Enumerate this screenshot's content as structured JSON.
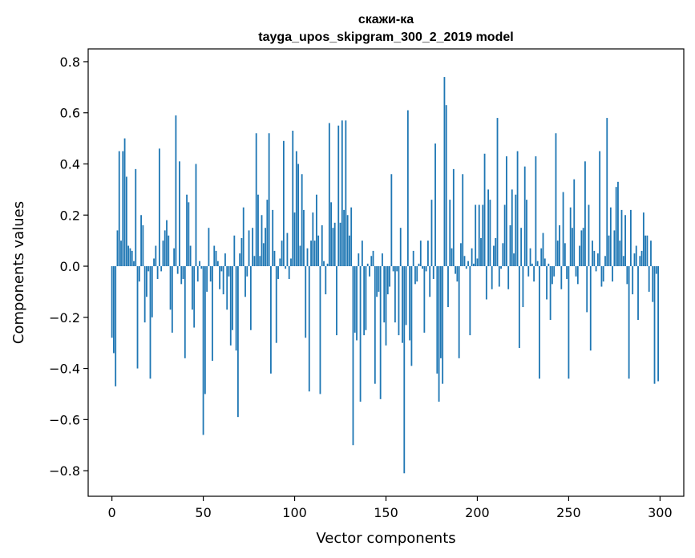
{
  "chart_data": {
    "type": "bar",
    "title_line1": "скажи-ка",
    "title_line2": "tayga_upos_skipgram_300_2_2019 model",
    "xlabel": "Vector components",
    "ylabel": "Components values",
    "xlim": [
      -13,
      313
    ],
    "ylim": [
      -0.9,
      0.85
    ],
    "xticks": [
      {
        "value": 0,
        "label": "0"
      },
      {
        "value": 50,
        "label": "50"
      },
      {
        "value": 100,
        "label": "100"
      },
      {
        "value": 150,
        "label": "150"
      },
      {
        "value": 200,
        "label": "200"
      },
      {
        "value": 250,
        "label": "250"
      },
      {
        "value": 300,
        "label": "300"
      }
    ],
    "yticks": [
      {
        "value": -0.8,
        "label": "−0.8"
      },
      {
        "value": -0.6,
        "label": "−0.6"
      },
      {
        "value": -0.4,
        "label": "−0.4"
      },
      {
        "value": -0.2,
        "label": "−0.2"
      },
      {
        "value": 0.0,
        "label": "0.0"
      },
      {
        "value": 0.2,
        "label": "0.2"
      },
      {
        "value": 0.4,
        "label": "0.4"
      },
      {
        "value": 0.6,
        "label": "0.6"
      },
      {
        "value": 0.8,
        "label": "0.8"
      }
    ],
    "bar_color": "#1f77b4",
    "grid": false,
    "legend": false,
    "values": [
      -0.28,
      -0.34,
      -0.47,
      0.14,
      0.45,
      0.1,
      0.45,
      0.5,
      0.35,
      0.08,
      0.07,
      0.06,
      0.02,
      0.38,
      -0.4,
      -0.06,
      0.2,
      0.16,
      -0.22,
      -0.12,
      -0.02,
      -0.44,
      -0.2,
      0.03,
      0.08,
      -0.05,
      0.46,
      -0.02,
      0.1,
      0.14,
      0.18,
      0.12,
      -0.17,
      -0.26,
      0.07,
      0.59,
      -0.03,
      0.41,
      -0.07,
      -0.05,
      -0.36,
      0.28,
      0.25,
      0.08,
      -0.17,
      -0.24,
      0.4,
      -0.06,
      0.02,
      -0.01,
      -0.66,
      -0.5,
      -0.1,
      0.15,
      -0.06,
      -0.37,
      0.08,
      0.06,
      0.02,
      -0.09,
      -0.02,
      -0.11,
      0.05,
      -0.17,
      -0.04,
      -0.31,
      -0.25,
      0.12,
      -0.33,
      -0.59,
      0.05,
      0.11,
      0.23,
      -0.12,
      -0.04,
      0.14,
      -0.25,
      0.15,
      0.04,
      0.52,
      0.28,
      0.04,
      0.2,
      0.09,
      0.15,
      0.26,
      0.52,
      -0.42,
      0.22,
      0.06,
      -0.3,
      -0.05,
      0.03,
      0.1,
      0.49,
      -0.01,
      0.13,
      -0.05,
      0.03,
      0.53,
      0.21,
      0.45,
      0.4,
      0.08,
      0.36,
      0.22,
      -0.28,
      0.07,
      -0.49,
      0.1,
      0.21,
      0.1,
      0.28,
      0.12,
      -0.5,
      0.16,
      0.02,
      -0.11,
      0.01,
      0.56,
      0.25,
      0.15,
      0.17,
      -0.27,
      0.55,
      0.17,
      0.57,
      0.22,
      0.57,
      0.2,
      0.12,
      0.23,
      -0.7,
      -0.26,
      -0.29,
      0.05,
      -0.53,
      0.1,
      -0.27,
      -0.25,
      0.01,
      -0.04,
      0.04,
      0.06,
      -0.46,
      -0.12,
      -0.1,
      -0.52,
      0.05,
      -0.22,
      -0.31,
      -0.11,
      -0.08,
      0.36,
      -0.02,
      -0.22,
      -0.02,
      -0.27,
      0.15,
      -0.3,
      -0.81,
      -0.23,
      0.61,
      -0.29,
      -0.39,
      0.06,
      -0.07,
      -0.06,
      0.01,
      0.1,
      -0.01,
      -0.26,
      -0.02,
      0.1,
      -0.12,
      0.26,
      -0.05,
      0.48,
      -0.42,
      -0.53,
      -0.36,
      -0.46,
      0.74,
      0.63,
      -0.16,
      0.26,
      0.07,
      0.38,
      -0.03,
      -0.06,
      -0.36,
      0.09,
      0.36,
      0.04,
      -0.01,
      0.02,
      -0.27,
      0.07,
      0.01,
      0.24,
      0.03,
      0.24,
      0.11,
      0.24,
      0.44,
      -0.13,
      0.3,
      0.26,
      -0.09,
      0.08,
      0.11,
      0.58,
      -0.08,
      -0.01,
      0.09,
      0.24,
      0.43,
      -0.09,
      0.16,
      0.3,
      0.05,
      0.28,
      0.45,
      -0.32,
      0.15,
      -0.16,
      0.39,
      0.26,
      -0.04,
      0.07,
      0.01,
      -0.06,
      0.43,
      0.02,
      -0.44,
      0.07,
      0.13,
      0.03,
      -0.13,
      0.01,
      -0.21,
      -0.07,
      -0.04,
      0.52,
      0.1,
      0.16,
      -0.09,
      0.29,
      0.09,
      -0.05,
      -0.44,
      0.23,
      0.15,
      0.34,
      -0.04,
      -0.07,
      0.08,
      0.14,
      0.15,
      0.41,
      -0.18,
      0.24,
      -0.33,
      0.1,
      0.06,
      -0.02,
      0.05,
      0.45,
      -0.08,
      -0.06,
      0.04,
      0.58,
      0.12,
      0.23,
      -0.06,
      0.14,
      0.31,
      0.33,
      0.1,
      0.22,
      0.04,
      0.2,
      -0.07,
      -0.44,
      0.22,
      -0.11,
      0.05,
      0.08,
      -0.21,
      0.04,
      0.06,
      0.21,
      0.12,
      0.12,
      -0.1,
      0.1,
      -0.14,
      -0.46,
      -0.03,
      -0.45
    ]
  }
}
